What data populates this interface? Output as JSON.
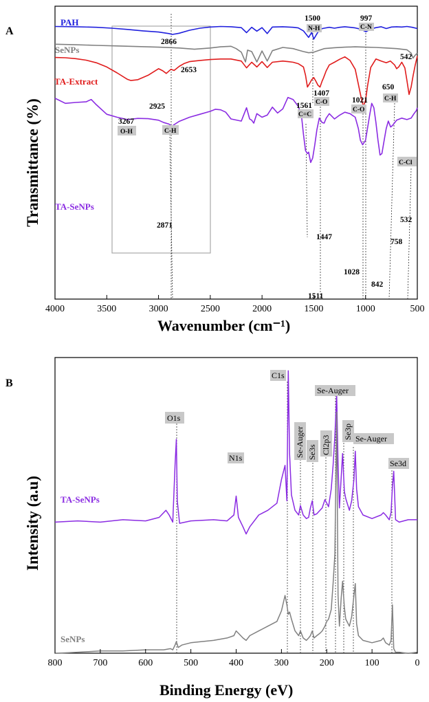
{
  "panels": {
    "a": "A",
    "b": "B"
  },
  "chart_data": [
    {
      "type": "line",
      "panel": "A",
      "xlabel": "Wavenumber (cm⁻¹)",
      "ylabel": "Transmittance (%)",
      "xlim": [
        4000,
        500
      ],
      "x_ticks": [
        "4000",
        "3500",
        "3000",
        "2500",
        "2000",
        "1500",
        "1000",
        "500"
      ],
      "x_reversed": true,
      "grid": false,
      "series": [
        {
          "name": "PAH",
          "color": "#1f1fdd",
          "x": [
            4000,
            3800,
            3600,
            3450,
            3300,
            3150,
            3000,
            2900,
            2866,
            2800,
            2700,
            2600,
            2500,
            2400,
            2300,
            2200,
            2150,
            2100,
            2050,
            2000,
            1950,
            1900,
            1800,
            1700,
            1650,
            1600,
            1550,
            1520,
            1500,
            1470,
            1440,
            1400,
            1350,
            1300,
            1250,
            1200,
            1150,
            1100,
            1050,
            997,
            950,
            900,
            850,
            800,
            750,
            700,
            650,
            600,
            550,
            500
          ],
          "y": [
            98.5,
            98.4,
            98.2,
            97.9,
            97.5,
            97.0,
            96.6,
            96.1,
            95.8,
            96.2,
            97.2,
            97.9,
            98.3,
            98.5,
            98.4,
            98.1,
            96.4,
            98.2,
            96.9,
            98.1,
            96.1,
            98.3,
            98.4,
            98.2,
            98.0,
            97.0,
            94.8,
            96.5,
            94.2,
            96.0,
            97.6,
            97.9,
            98.2,
            97.9,
            98.2,
            98.4,
            98.2,
            98.0,
            97.6,
            96.7,
            97.6,
            98.1,
            98.4,
            97.8,
            98.3,
            98.4,
            98.3,
            98.5,
            98.2,
            97.8
          ]
        },
        {
          "name": "SeNPs",
          "color": "#808080",
          "x": [
            4000,
            3800,
            3600,
            3400,
            3200,
            3000,
            2800,
            2653,
            2500,
            2400,
            2300,
            2250,
            2200,
            2160,
            2140,
            2100,
            2050,
            2000,
            1950,
            1900,
            1800,
            1700,
            1650,
            1600,
            1550,
            1500,
            1450,
            1400,
            1300,
            1200,
            1100,
            1000,
            900,
            800,
            700,
            600,
            560,
            542,
            520,
            500
          ],
          "y": [
            92.5,
            92.3,
            92.1,
            91.9,
            91.7,
            91.5,
            91.2,
            90.8,
            91.2,
            91.6,
            91.8,
            91.0,
            89.8,
            86.5,
            90.5,
            90.0,
            86.5,
            90.2,
            86.8,
            90.3,
            91.4,
            91.0,
            90.5,
            90.0,
            89.6,
            89.8,
            90.4,
            91.0,
            91.3,
            91.5,
            91.6,
            91.5,
            91.4,
            91.2,
            91.0,
            90.6,
            89.5,
            87.8,
            88.8,
            89.5
          ]
        },
        {
          "name": "TA-Extract",
          "color": "#e01b1b",
          "x": [
            4000,
            3900,
            3800,
            3700,
            3600,
            3500,
            3400,
            3300,
            3267,
            3200,
            3100,
            3000,
            2960,
            2925,
            2880,
            2850,
            2800,
            2750,
            2700,
            2600,
            2500,
            2400,
            2300,
            2200,
            2150,
            2100,
            2050,
            2000,
            1950,
            1900,
            1800,
            1750,
            1700,
            1650,
            1600,
            1580,
            1561,
            1540,
            1520,
            1500,
            1480,
            1460,
            1440,
            1420,
            1407,
            1380,
            1350,
            1300,
            1250,
            1200,
            1150,
            1100,
            1070,
            1040,
            1021,
            1000,
            980,
            950,
            900,
            850,
            800,
            760,
            720,
            700,
            680,
            650,
            620,
            600,
            580,
            560,
            540,
            520,
            500
          ],
          "y": [
            88.0,
            87.9,
            87.6,
            87.1,
            86.2,
            84.8,
            82.8,
            80.6,
            80.2,
            80.5,
            82.0,
            84.2,
            83.5,
            82.6,
            84.0,
            83.6,
            85.0,
            86.0,
            86.6,
            87.0,
            87.3,
            87.5,
            87.5,
            86.8,
            84.5,
            86.4,
            84.8,
            86.6,
            84.6,
            86.4,
            86.8,
            86.6,
            86.4,
            85.9,
            84.8,
            82.0,
            78.0,
            79.2,
            80.5,
            81.2,
            80.0,
            78.6,
            78.0,
            80.0,
            81.0,
            83.5,
            85.5,
            86.4,
            87.4,
            88.2,
            87.0,
            84.0,
            79.0,
            74.0,
            71.5,
            73.5,
            78.5,
            84.6,
            87.5,
            86.8,
            86.2,
            86.8,
            85.5,
            84.2,
            84.8,
            86.4,
            84.5,
            80.2,
            75.5,
            78.0,
            82.0,
            85.5,
            88.5
          ]
        },
        {
          "name": "TA-SeNPs",
          "color": "#8a2be2",
          "x": [
            4000,
            3900,
            3800,
            3700,
            3650,
            3600,
            3500,
            3400,
            3300,
            3200,
            3100,
            3000,
            2950,
            2900,
            2871,
            2800,
            2700,
            2600,
            2500,
            2450,
            2400,
            2350,
            2300,
            2200,
            2150,
            2120,
            2100,
            2080,
            2050,
            2000,
            1950,
            1900,
            1850,
            1800,
            1750,
            1700,
            1650,
            1620,
            1600,
            1580,
            1561,
            1550,
            1530,
            1511,
            1490,
            1470,
            1447,
            1420,
            1400,
            1380,
            1350,
            1300,
            1250,
            1200,
            1150,
            1100,
            1070,
            1050,
            1028,
            1000,
            960,
            940,
            920,
            900,
            880,
            860,
            842,
            820,
            800,
            780,
            758,
            740,
            700,
            650,
            600,
            560,
            532,
            510,
            500
          ],
          "y": [
            74.2,
            72.5,
            72.8,
            73.0,
            73.8,
            72.0,
            68.8,
            67.8,
            67.0,
            67.4,
            67.3,
            66.8,
            66.0,
            65.5,
            64.8,
            66.4,
            67.8,
            68.8,
            69.8,
            70.5,
            70.3,
            69.5,
            67.2,
            66.5,
            71.0,
            67.2,
            66.8,
            65.8,
            69.0,
            67.8,
            68.5,
            71.2,
            69.2,
            70.6,
            74.5,
            73.8,
            71.5,
            68.5,
            62.0,
            56.5,
            55.5,
            56.0,
            52.5,
            54.0,
            58.5,
            63.5,
            67.5,
            66.0,
            65.8,
            67.5,
            69.0,
            67.2,
            68.5,
            69.5,
            69.0,
            67.8,
            64.0,
            60.0,
            58.5,
            60.0,
            68.5,
            72.5,
            71.0,
            66.0,
            60.0,
            55.0,
            55.5,
            60.0,
            64.0,
            66.5,
            64.5,
            65.0,
            66.8,
            67.5,
            67.0,
            67.5,
            69.0,
            70.0,
            71.0
          ]
        }
      ],
      "peak_labels": [
        "1500",
        "997",
        "2866",
        "542",
        "2653",
        "650",
        "1407",
        "1561",
        "1021",
        "2925",
        "3267",
        "2871",
        "1447",
        "758",
        "1028",
        "842",
        "1511",
        "532"
      ],
      "band_labels": [
        "N-H",
        "C-N",
        "C-O",
        "C=C",
        "C-O",
        "C-H",
        "O-H",
        "C-H",
        "C-Cl"
      ],
      "series_labels": [
        "PAH",
        "SeNPs",
        "TA-Extract",
        "TA-SeNPs"
      ]
    },
    {
      "type": "line",
      "panel": "B",
      "xlabel": "Binding Energy (eV)",
      "ylabel": "Intensity (a.u)",
      "xlim": [
        800,
        0
      ],
      "x_ticks": [
        "800",
        "700",
        "600",
        "500",
        "400",
        "300",
        "200",
        "100",
        "0"
      ],
      "x_reversed": true,
      "grid": false,
      "series": [
        {
          "name": "TA-SeNPs",
          "color": "#8a2be2",
          "x": [
            800,
            750,
            700,
            650,
            600,
            570,
            555,
            548,
            540,
            535,
            532,
            530,
            525,
            500,
            450,
            420,
            405,
            400,
            395,
            385,
            378,
            370,
            350,
            330,
            310,
            300,
            292,
            288,
            285,
            282,
            278,
            270,
            262,
            258,
            252,
            245,
            240,
            236,
            232,
            228,
            222,
            215,
            210,
            204,
            200,
            196,
            190,
            186,
            182,
            178,
            175,
            172,
            168,
            165,
            161,
            158,
            150,
            145,
            140,
            137,
            134,
            130,
            120,
            100,
            80,
            75,
            70,
            62,
            58,
            55,
            52,
            48,
            40,
            20,
            0
          ],
          "y": [
            12,
            13,
            12,
            14,
            13,
            16,
            22,
            18,
            12,
            60,
            82,
            30,
            11,
            13,
            14,
            13,
            18,
            34,
            16,
            8,
            2,
            8,
            18,
            22,
            28,
            48,
            60,
            30,
            140,
            70,
            35,
            22,
            18,
            26,
            18,
            15,
            16,
            24,
            30,
            18,
            19,
            22,
            24,
            31,
            28,
            25,
            40,
            60,
            85,
            120,
            62,
            24,
            50,
            70,
            38,
            32,
            22,
            30,
            48,
            72,
            40,
            25,
            18,
            15,
            18,
            20,
            18,
            14,
            20,
            42,
            55,
            14,
            12,
            14,
            14
          ]
        },
        {
          "name": "SeNPs",
          "color": "#808080",
          "x": [
            800,
            750,
            700,
            650,
            600,
            560,
            545,
            540,
            535,
            532,
            528,
            520,
            500,
            450,
            420,
            405,
            400,
            395,
            385,
            378,
            370,
            350,
            330,
            310,
            300,
            292,
            288,
            285,
            282,
            278,
            270,
            262,
            258,
            252,
            245,
            240,
            236,
            232,
            228,
            222,
            215,
            210,
            204,
            200,
            196,
            190,
            186,
            182,
            178,
            175,
            172,
            168,
            165,
            161,
            158,
            150,
            145,
            140,
            137,
            134,
            130,
            120,
            100,
            80,
            75,
            70,
            62,
            58,
            55,
            52,
            48,
            40,
            20,
            0
          ],
          "y": [
            -99,
            -98,
            -97,
            -97,
            -96,
            -96,
            -95,
            -96,
            -92,
            -89,
            -94,
            -92,
            -90,
            -88,
            -86,
            -84,
            -80,
            -82,
            -86,
            -88,
            -84,
            -80,
            -76,
            -72,
            -63,
            -50,
            -58,
            -66,
            -64,
            -70,
            -80,
            -84,
            -80,
            -86,
            -88,
            -86,
            -84,
            -80,
            -86,
            -84,
            -82,
            -80,
            -76,
            -72,
            -70,
            -62,
            -40,
            -15,
            105,
            -50,
            -76,
            -52,
            -38,
            -60,
            -70,
            -76,
            -68,
            -50,
            -40,
            -74,
            -84,
            -88,
            -90,
            -88,
            -86,
            -90,
            -92,
            -88,
            -58,
            -95,
            -98,
            -98,
            -99,
            -98
          ]
        }
      ],
      "peak_labels": [
        "O1s",
        "C1s",
        "Se-Auger",
        "Se-Auger",
        "Se3s",
        "Cl2p3",
        "Se3p",
        "Se-Auger",
        "N1s",
        "Se3d"
      ],
      "series_labels": [
        "TA-SeNPs",
        "SeNPs"
      ]
    }
  ]
}
